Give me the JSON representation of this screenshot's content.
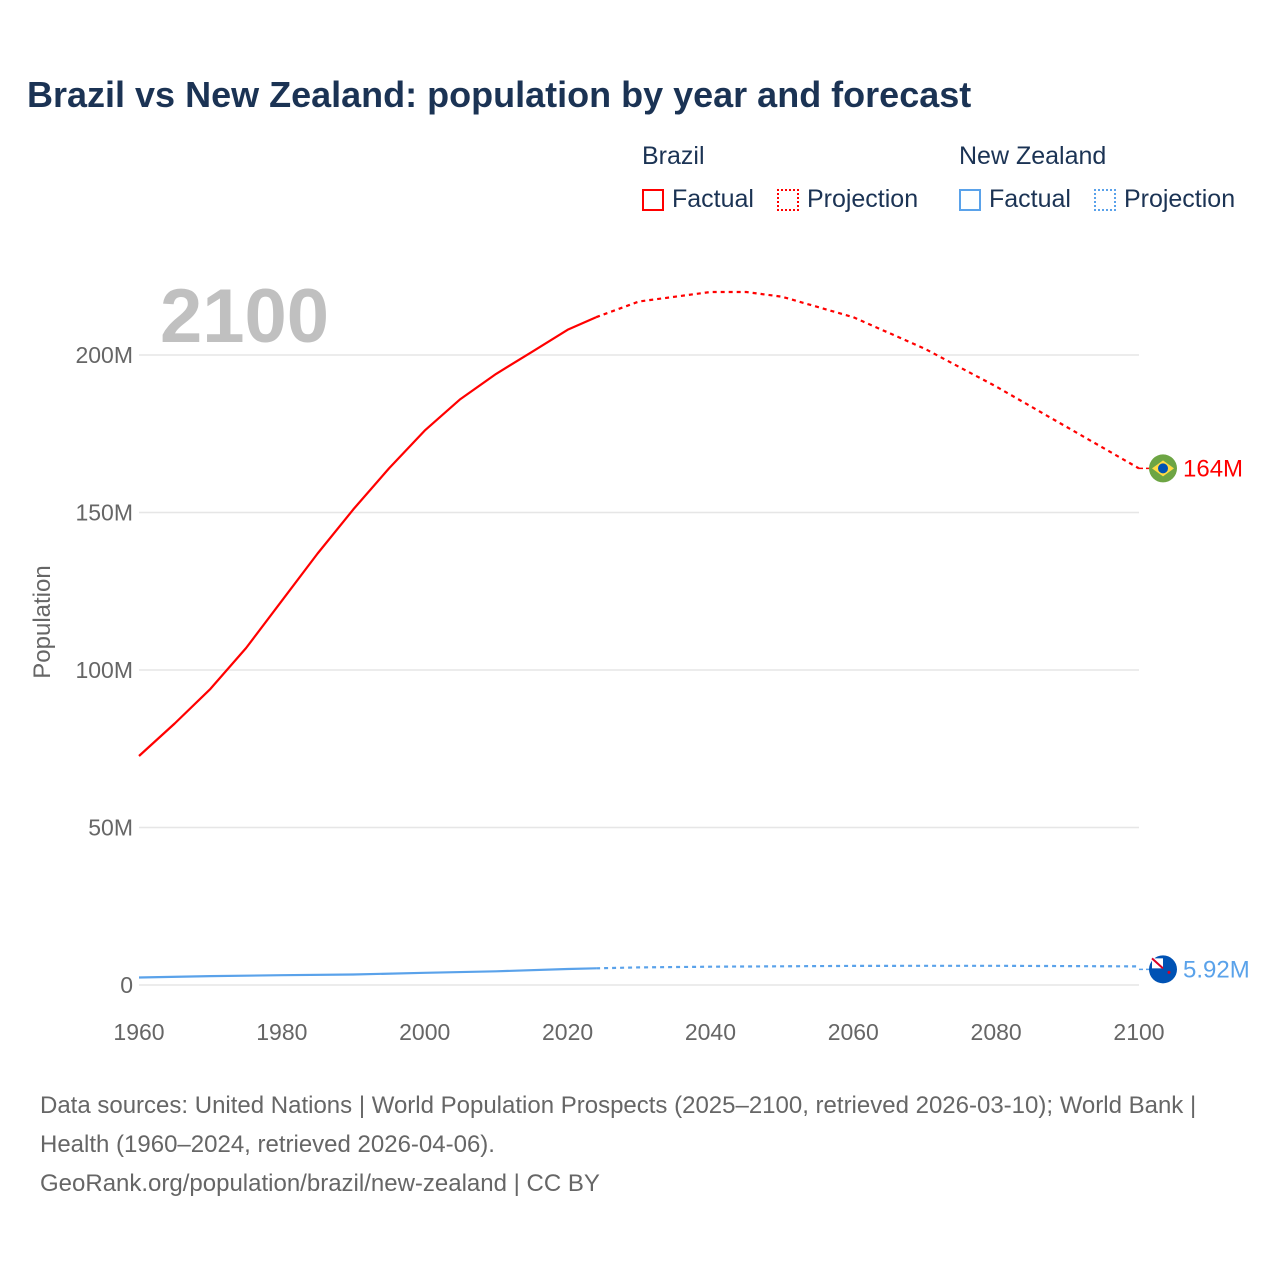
{
  "title": "Brazil vs New Zealand: population by year and forecast",
  "year_label": "2100",
  "legend": {
    "groups": [
      {
        "name": "Brazil",
        "factual": "Factual",
        "projection": "Projection",
        "color": "#ff0000"
      },
      {
        "name": "New Zealand",
        "factual": "Factual",
        "projection": "Projection",
        "color": "#5aa2ea"
      }
    ]
  },
  "footer": {
    "sources": "Data sources: United Nations | World Population Prospects (2025–2100, retrieved 2026-03-10); World Bank | Health (1960–2024, retrieved 2026-04-06).",
    "credit": "GeoRank.org/population/brazil/new-zealand | CC BY"
  },
  "chart_data": {
    "type": "line",
    "title": "Brazil vs New Zealand: population by year and forecast",
    "xlabel": "",
    "ylabel": "Population",
    "xlim": [
      1960,
      2100
    ],
    "ylim": [
      0,
      230
    ],
    "x_ticks": [
      "1960",
      "1980",
      "2000",
      "2020",
      "2040",
      "2060",
      "2080",
      "2100"
    ],
    "y_ticks": [
      {
        "v": 0,
        "label": "0"
      },
      {
        "v": 50,
        "label": "50M"
      },
      {
        "v": 100,
        "label": "100M"
      },
      {
        "v": 150,
        "label": "150M"
      },
      {
        "v": 200,
        "label": "200M"
      }
    ],
    "units": "millions",
    "series": [
      {
        "name": "Brazil",
        "color": "#ff0000",
        "end_label": "164M",
        "factual": {
          "x": [
            1960,
            1965,
            1970,
            1975,
            1980,
            1985,
            1990,
            1995,
            2000,
            2005,
            2010,
            2015,
            2020,
            2024
          ],
          "y": [
            72.7,
            83,
            94,
            107,
            122,
            137,
            151,
            164,
            176,
            186,
            194,
            201,
            208,
            212
          ]
        },
        "projection": {
          "x": [
            2024,
            2030,
            2040,
            2045,
            2050,
            2060,
            2070,
            2080,
            2090,
            2100
          ],
          "y": [
            212,
            217,
            220,
            220,
            218.5,
            212,
            202,
            190,
            177,
            164
          ]
        }
      },
      {
        "name": "New Zealand",
        "color": "#5aa2ea",
        "end_label": "5.92M",
        "factual": {
          "x": [
            1960,
            1970,
            1980,
            1990,
            2000,
            2010,
            2020,
            2024
          ],
          "y": [
            2.37,
            2.81,
            3.11,
            3.33,
            3.86,
            4.35,
            5.09,
            5.29
          ]
        },
        "projection": {
          "x": [
            2024,
            2030,
            2040,
            2050,
            2060,
            2070,
            2080,
            2090,
            2100
          ],
          "y": [
            5.29,
            5.6,
            5.8,
            5.95,
            6.05,
            6.1,
            6.1,
            6.0,
            5.92
          ]
        }
      }
    ]
  }
}
